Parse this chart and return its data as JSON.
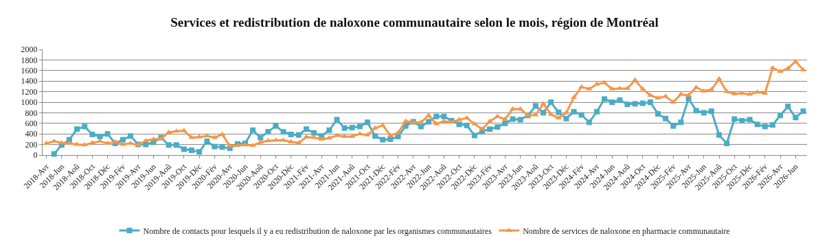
{
  "chart_data": {
    "type": "line",
    "title": "Services et redistribution de naloxone communautaire selon le mois, région de Montréal",
    "categories": [
      "2018-Avr",
      null,
      "2018-Jun",
      null,
      "2018-Aoû",
      null,
      "2018-Oct",
      null,
      "2018-Déc",
      null,
      "2019-Fév",
      null,
      "2019-Avr",
      null,
      "2019-Jun",
      null,
      "2019-Aoû",
      null,
      "2019-Oct",
      null,
      "2019-Déc",
      null,
      "2020-Fév",
      null,
      "2020-Avr",
      null,
      "2020-Jun",
      null,
      "2020-Aoû",
      null,
      "2020-Oct",
      null,
      "2020-Déc",
      null,
      "2021-Fév",
      null,
      "2021-Avr",
      null,
      "2021-Jun",
      null,
      "2021-Aoû",
      null,
      "2021-Oct",
      null,
      "2021-Déc",
      null,
      "2022-Fév",
      null,
      "2022-Avr",
      null,
      "2022-Jun",
      null,
      "2022-Aoû",
      null,
      "2022-Oct",
      null,
      "2022-Déc",
      null,
      "2023-Fév",
      null,
      "2023-Avr",
      null,
      "2023-Jun",
      null,
      "2023-Aoû",
      null,
      "2023-Oct",
      null,
      "2023-Déc",
      null,
      "2024-Fév",
      null,
      "2024-Avr",
      null,
      "2024-Jun",
      null,
      "2024-Aoû",
      null,
      "2024-Oct",
      null,
      "2024-Déc",
      null,
      "2025-Fév",
      null,
      "2025-Avr",
      null,
      "2025-Jun",
      null,
      "2025-Aoû",
      null,
      "2025-Oct",
      null,
      "2025-Déc",
      null,
      "2026-Fév",
      null,
      "2026-Avr",
      null,
      "2026-Jun",
      null
    ],
    "series": [
      {
        "name": "Nombre de contacts pour lesquels il y a eu redistribution de naloxone par les organismes communautaires",
        "color": "#4bacc6",
        "marker": "square",
        "values": [
          null,
          20,
          190,
          290,
          490,
          540,
          390,
          350,
          400,
          220,
          290,
          360,
          200,
          200,
          240,
          330,
          190,
          190,
          110,
          90,
          60,
          260,
          160,
          150,
          130,
          210,
          220,
          470,
          330,
          440,
          550,
          440,
          390,
          380,
          490,
          420,
          360,
          470,
          670,
          510,
          520,
          540,
          620,
          360,
          290,
          300,
          350,
          550,
          630,
          540,
          630,
          730,
          730,
          650,
          580,
          560,
          370,
          450,
          490,
          530,
          600,
          680,
          670,
          750,
          930,
          800,
          1000,
          810,
          690,
          820,
          760,
          620,
          820,
          1060,
          1000,
          1040,
          960,
          970,
          980,
          1000,
          780,
          690,
          550,
          620,
          1070,
          840,
          800,
          830,
          380,
          220,
          680,
          650,
          670,
          580,
          540,
          570,
          750,
          920,
          710,
          830
        ]
      },
      {
        "name": "Nombre de services de naloxone en pharmacie communautaire",
        "color": "#f79646",
        "marker": "triangle",
        "values": [
          220,
          260,
          230,
          220,
          200,
          190,
          230,
          260,
          220,
          250,
          200,
          220,
          190,
          270,
          300,
          310,
          430,
          450,
          460,
          330,
          340,
          360,
          330,
          390,
          170,
          180,
          190,
          180,
          240,
          270,
          280,
          280,
          250,
          230,
          340,
          330,
          300,
          320,
          370,
          350,
          350,
          400,
          380,
          510,
          560,
          370,
          420,
          640,
          620,
          620,
          750,
          590,
          640,
          620,
          670,
          700,
          590,
          490,
          640,
          730,
          680,
          870,
          870,
          750,
          760,
          970,
          770,
          700,
          800,
          1090,
          1290,
          1250,
          1340,
          1370,
          1250,
          1260,
          1260,
          1420,
          1250,
          1130,
          1080,
          1110,
          1000,
          1150,
          1130,
          1280,
          1210,
          1240,
          1440,
          1200,
          1160,
          1170,
          1150,
          1190,
          1170,
          1650,
          1580,
          1640,
          1770,
          1610
        ]
      }
    ],
    "ylim": [
      0,
      2000
    ],
    "yticks": [
      0,
      200,
      400,
      600,
      800,
      1000,
      1200,
      1400,
      1600,
      1800,
      2000
    ],
    "grid": "y",
    "legend": "bottom",
    "line_style": "solid"
  }
}
